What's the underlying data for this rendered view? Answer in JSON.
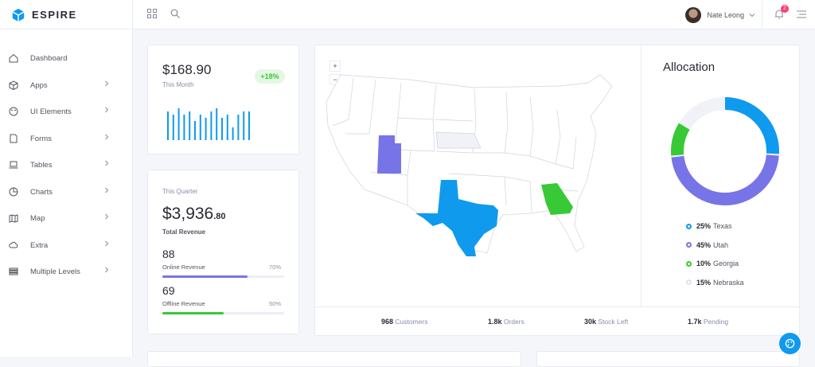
{
  "brand": {
    "name": "ESPIRE"
  },
  "header": {
    "user_name": "Nate Leong",
    "notification_count": "2"
  },
  "sidebar": {
    "items": [
      {
        "label": "Dashboard",
        "icon": "home-icon",
        "has_children": false
      },
      {
        "label": "Apps",
        "icon": "cube-icon",
        "has_children": true
      },
      {
        "label": "UI Elements",
        "icon": "palette-icon",
        "has_children": true
      },
      {
        "label": "Forms",
        "icon": "file-icon",
        "has_children": true
      },
      {
        "label": "Tables",
        "icon": "laptop-icon",
        "has_children": true
      },
      {
        "label": "Charts",
        "icon": "pie-chart-icon",
        "has_children": true
      },
      {
        "label": "Map",
        "icon": "map-icon",
        "has_children": true
      },
      {
        "label": "Extra",
        "icon": "cloud-icon",
        "has_children": true
      },
      {
        "label": "Multiple Levels",
        "icon": "list-icon",
        "has_children": true
      }
    ]
  },
  "month_card": {
    "amount": "$168.90",
    "label": "This Month",
    "change": "+18%",
    "sparkline": [
      9,
      8,
      10,
      8,
      9,
      6,
      8,
      7,
      9,
      10,
      7,
      8,
      4,
      8,
      9,
      9
    ]
  },
  "quarter_card": {
    "label": "This Quarter",
    "amount_main": "$3,936",
    "amount_cents": ".80",
    "total_label": "Total Revenue",
    "online": {
      "value": "88",
      "label": "Online Revenue",
      "percent": "70%",
      "fraction": 0.7,
      "color": "#7774e7"
    },
    "offline": {
      "value": "69",
      "label": "Offline Revenue",
      "percent": "50%",
      "fraction": 0.5,
      "color": "#37c936"
    }
  },
  "map": {
    "zoom_in": "+",
    "zoom_out": "−",
    "highlighted": [
      {
        "state": "Texas",
        "color": "#0f9aee"
      },
      {
        "state": "Utah",
        "color": "#7774e7"
      },
      {
        "state": "Georgia",
        "color": "#37c936"
      },
      {
        "state": "Nebraska",
        "color": "#f0f2f7"
      }
    ]
  },
  "allocation": {
    "title": "Allocation",
    "items": [
      {
        "pct": "25%",
        "name": "Texas",
        "color": "#0f9aee",
        "value": 25
      },
      {
        "pct": "45%",
        "name": "Utah",
        "color": "#7774e7",
        "value": 45
      },
      {
        "pct": "10%",
        "name": "Georgia",
        "color": "#37c936",
        "value": 10
      },
      {
        "pct": "15%",
        "name": "Nebraska",
        "color": "#f0f2f7",
        "value": 15
      }
    ]
  },
  "stats": [
    {
      "value": "968",
      "label": "Customers"
    },
    {
      "value": "1.8k",
      "label": "Orders"
    },
    {
      "value": "30k",
      "label": "Stock Left"
    },
    {
      "value": "1.7k",
      "label": "Pending"
    }
  ]
}
